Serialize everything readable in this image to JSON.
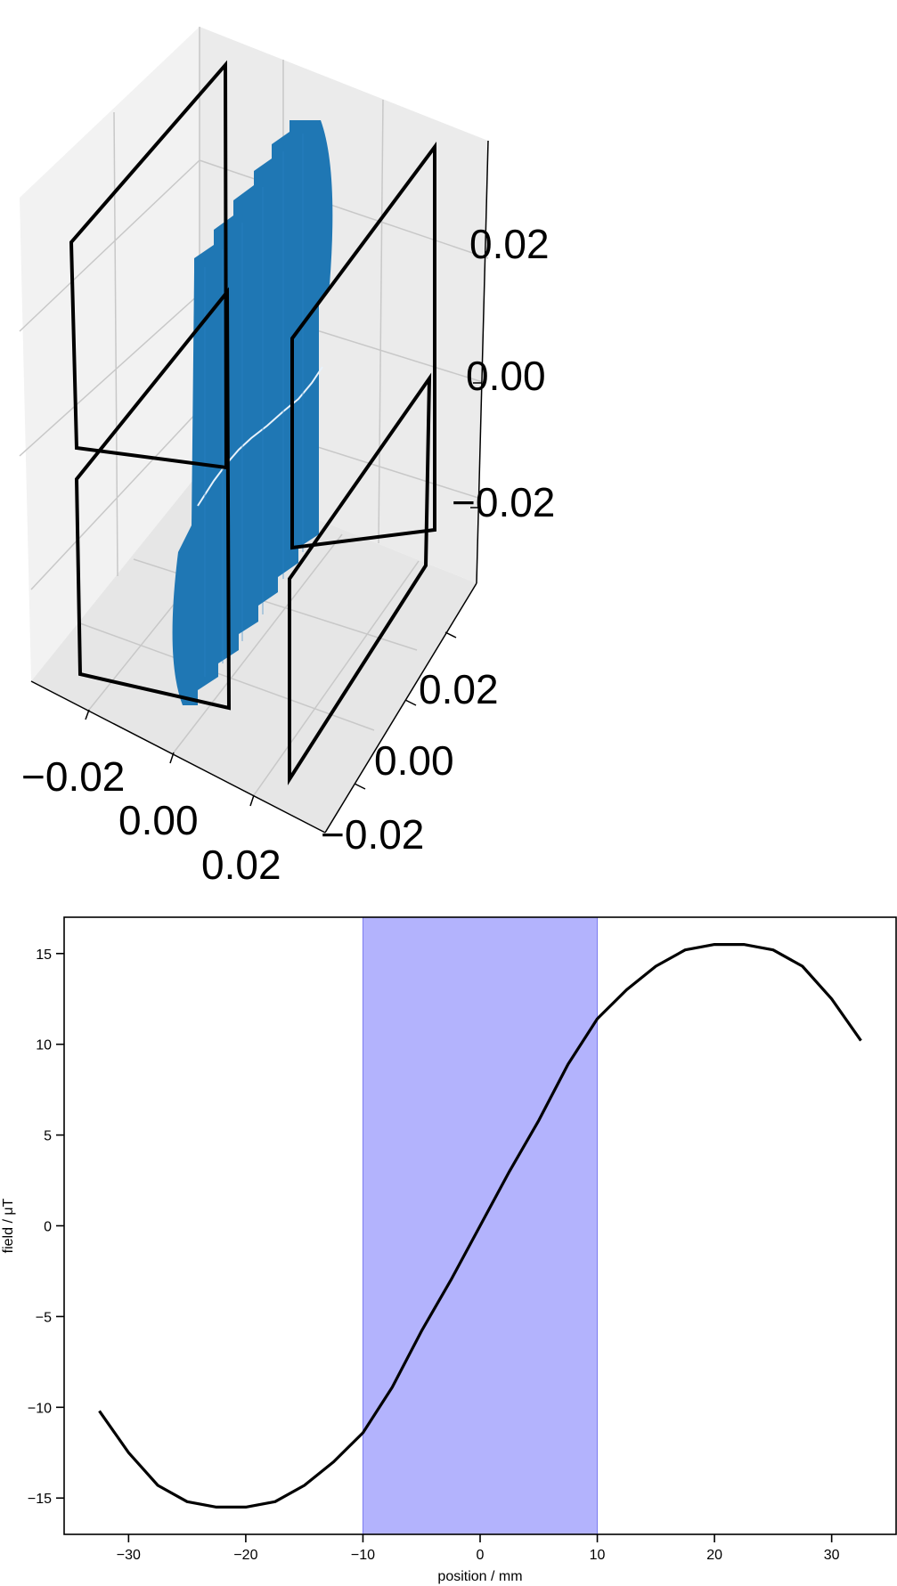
{
  "chart_data": [
    {
      "type": "scatter3d",
      "title": "",
      "series_color": "#1f77b4",
      "coil_color": "#000000",
      "x_ticks": [
        "−0.02",
        "0.00",
        "0.02"
      ],
      "y_ticks": [
        "−0.02",
        "0.00",
        "0.02"
      ],
      "z_ticks": [
        "−0.02",
        "0.00",
        "0.02"
      ],
      "coils": 4
    },
    {
      "type": "line",
      "title": "",
      "xlabel": "position / mm",
      "ylabel": "field / μT",
      "xlim": [
        -35.5,
        35.5
      ],
      "ylim": [
        -17,
        17
      ],
      "xticks": [
        -30,
        -20,
        -10,
        0,
        10,
        20,
        30
      ],
      "yticks": [
        -15,
        -10,
        -5,
        0,
        5,
        10,
        15
      ],
      "xtick_labels": [
        "−30",
        "−20",
        "−10",
        "0",
        "10",
        "20",
        "30"
      ],
      "ytick_labels": [
        "−15",
        "−10",
        "−5",
        "0",
        "5",
        "10",
        "15"
      ],
      "shaded_region": [
        -10,
        10
      ],
      "shade_color": "#b3b3fd",
      "line_color": "#000000",
      "series": [
        {
          "x": [
            -32.5,
            -30,
            -27.5,
            -25,
            -22.5,
            -20,
            -17.5,
            -15,
            -12.5,
            -10,
            -7.5,
            -5,
            -2.5,
            0,
            2.5,
            5,
            7.5,
            10,
            12.5,
            15,
            17.5,
            20,
            22.5,
            25,
            27.5,
            30,
            32.5
          ],
          "values": [
            -10.2,
            -12.5,
            -14.3,
            -15.2,
            -15.5,
            -15.5,
            -15.2,
            -14.3,
            -13.0,
            -11.4,
            -8.9,
            -5.8,
            -3.0,
            0.0,
            3.0,
            5.8,
            8.9,
            11.4,
            13.0,
            14.3,
            15.2,
            15.5,
            15.5,
            15.2,
            14.3,
            12.5,
            10.2
          ]
        }
      ]
    }
  ]
}
